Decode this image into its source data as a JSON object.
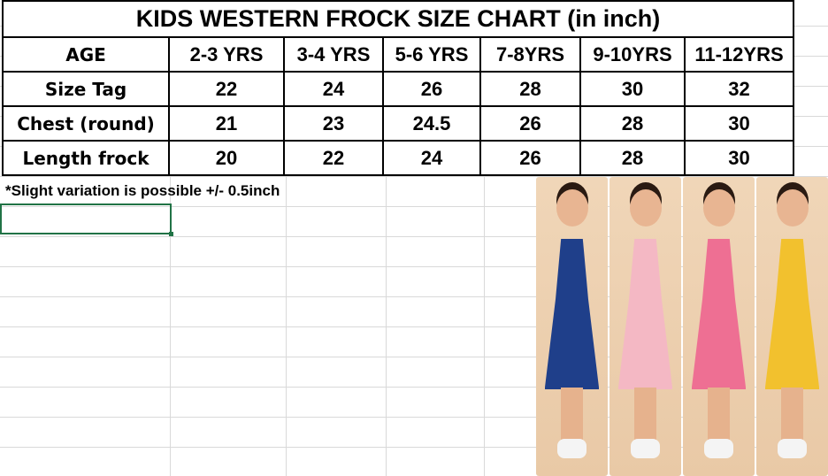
{
  "title": "KIDS WESTERN FROCK SIZE CHART (in inch)",
  "header": {
    "label": "AGE",
    "cols": [
      "2-3 YRS",
      "3-4 YRS",
      "5-6 YRS",
      "7-8YRS",
      "9-10YRS",
      "11-12YRS"
    ]
  },
  "rows": [
    {
      "label": "Size Tag",
      "values": [
        "22",
        "24",
        "26",
        "28",
        "30",
        "32"
      ]
    },
    {
      "label": "Chest (round)",
      "values": [
        "21",
        "23",
        "24.5",
        "26",
        "28",
        "30"
      ]
    },
    {
      "label": "Length frock",
      "values": [
        "20",
        "22",
        "24",
        "26",
        "28",
        "30"
      ]
    }
  ],
  "note": "*Slight variation is possible +/- 0.5inch",
  "colors": {
    "selection": "#217346",
    "dresses": [
      "#1f3f8a",
      "#f4b8c4",
      "#ee6f93",
      "#f2c12e"
    ]
  }
}
